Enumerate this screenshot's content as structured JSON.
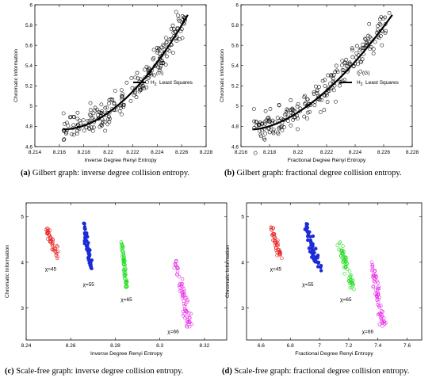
{
  "chart_data": [
    {
      "id": "a",
      "type": "scatter",
      "caption_label": "(a)",
      "caption_text": "Gilbert graph: inverse degree collision entropy.",
      "xlabel": "Inverse Degree Renyi Entropy",
      "ylabel": "Chromatic Information",
      "xlim": [
        8.214,
        8.228
      ],
      "ylim": [
        4.6,
        6.0
      ],
      "xticks": [
        "8.214",
        "8.216",
        "8.218",
        "8.22",
        "8.222",
        "8.224",
        "8.226",
        "8.228"
      ],
      "yticks": [
        "4.6",
        "4.8",
        "5",
        "5.2",
        "5.4",
        "5.6",
        "5.8",
        "6"
      ],
      "legend": {
        "position": "center-right",
        "entries": [
          {
            "label": "I_c(G)",
            "kind": "marker"
          },
          {
            "label": "H_2 Least Squares",
            "kind": "line"
          }
        ]
      },
      "cloud": {
        "x_start": 8.2163,
        "x_end": 8.2263,
        "y_start": 4.78,
        "y_end": 5.88,
        "curve": 1.9,
        "noise": 0.07,
        "n": 230
      },
      "fit_line": {
        "x": [
          8.2163,
          8.2265
        ],
        "y": [
          4.77,
          5.9
        ],
        "curve": 1.9
      },
      "marker_color": "#000000"
    },
    {
      "id": "b",
      "type": "scatter",
      "caption_label": "(b)",
      "caption_text": "Gilbert graph: fractional degree collision entropy.",
      "xlabel": "Fractional Degree Renyi Entropy",
      "ylabel": "Chromatic Information",
      "xlim": [
        8.216,
        8.228
      ],
      "ylim": [
        4.6,
        6.0
      ],
      "xticks": [
        "8.216",
        "8.218",
        "8.22",
        "8.222",
        "8.224",
        "8.226",
        "8.228"
      ],
      "yticks": [
        "4.6",
        "4.8",
        "5",
        "5.2",
        "5.4",
        "5.6",
        "5.8",
        "6"
      ],
      "legend": {
        "position": "center-right",
        "entries": [
          {
            "label": "I_c(G)",
            "kind": "marker"
          },
          {
            "label": "H_2 Least Squares",
            "kind": "line"
          }
        ]
      },
      "cloud": {
        "x_start": 8.2169,
        "x_end": 8.2264,
        "y_start": 4.78,
        "y_end": 5.88,
        "curve": 1.7,
        "noise": 0.07,
        "n": 230
      },
      "fit_line": {
        "x": [
          8.2168,
          8.2266
        ],
        "y": [
          4.77,
          5.9
        ],
        "curve": 1.7
      },
      "marker_color": "#000000"
    },
    {
      "id": "c",
      "type": "scatter",
      "caption_label": "(c)",
      "caption_text": "Scale-free graph: inverse degree collision entropy.",
      "xlabel": "Inverse Degree Renyi Entropy",
      "ylabel": "Chromatic Information",
      "xlim": [
        8.24,
        8.33
      ],
      "ylim": [
        2.3,
        5.3
      ],
      "xticks": [
        "8.24",
        "8.26",
        "8.28",
        "8.3",
        "8.32"
      ],
      "yticks": [
        "3",
        "4",
        "5"
      ],
      "clusters": [
        {
          "label": "χ=45",
          "color": "#e8201f",
          "filled": false,
          "x": [
            8.249,
            8.254
          ],
          "y": [
            4.75,
            4.15
          ],
          "n": 45,
          "label_x": 8.251,
          "label_y": 3.82
        },
        {
          "label": "χ=55",
          "color": "#1b2bd6",
          "filled": true,
          "x": [
            8.266,
            8.269
          ],
          "y": [
            4.85,
            3.88
          ],
          "n": 55,
          "label_x": 8.268,
          "label_y": 3.48
        },
        {
          "label": "χ=65",
          "color": "#22dd22",
          "filled": false,
          "x": [
            8.283,
            8.285
          ],
          "y": [
            4.4,
            3.45
          ],
          "n": 65,
          "label_x": 8.285,
          "label_y": 3.15
        },
        {
          "label": "χ=66",
          "color": "#e824e8",
          "filled": false,
          "x": [
            8.307,
            8.313
          ],
          "y": [
            4.05,
            2.62
          ],
          "n": 66,
          "label_x": 8.306,
          "label_y": 2.45
        }
      ]
    },
    {
      "id": "d",
      "type": "scatter",
      "caption_label": "(d)",
      "caption_text": "Scale-free graph: fractional degree collision entropy.",
      "xlabel": "Fractional Degree Renyi Entropy",
      "ylabel": "Chromatic Information",
      "xlim": [
        6.5,
        7.7
      ],
      "ylim": [
        2.3,
        5.3
      ],
      "xticks": [
        "6.6",
        "6.8",
        "7",
        "7.2",
        "7.4",
        "7.6"
      ],
      "yticks": [
        "3",
        "4",
        "5"
      ],
      "clusters": [
        {
          "label": "χ=45",
          "color": "#e8201f",
          "filled": false,
          "x": [
            6.67,
            6.73
          ],
          "y": [
            4.75,
            4.15
          ],
          "n": 45,
          "label_x": 6.7,
          "label_y": 3.82
        },
        {
          "label": "χ=55",
          "color": "#1b2bd6",
          "filled": true,
          "x": [
            6.9,
            7.0
          ],
          "y": [
            4.85,
            3.88
          ],
          "n": 55,
          "label_x": 6.92,
          "label_y": 3.48
        },
        {
          "label": "χ=65",
          "color": "#22dd22",
          "filled": false,
          "x": [
            7.14,
            7.22
          ],
          "y": [
            4.4,
            3.45
          ],
          "n": 65,
          "label_x": 7.18,
          "label_y": 3.15
        },
        {
          "label": "χ=66",
          "color": "#e824e8",
          "filled": false,
          "x": [
            7.35,
            7.44
          ],
          "y": [
            4.05,
            2.62
          ],
          "n": 66,
          "label_x": 7.33,
          "label_y": 2.45
        }
      ]
    }
  ]
}
